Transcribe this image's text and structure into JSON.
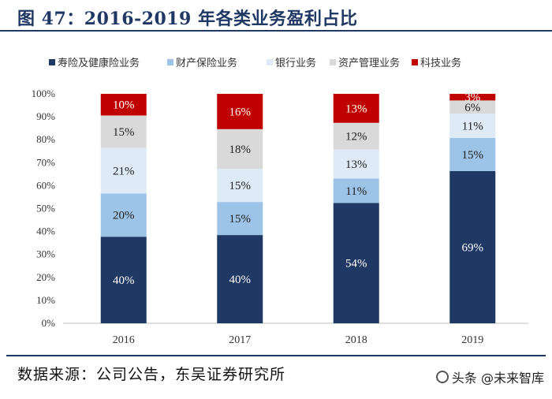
{
  "title": "图 47：2016-2019 年各类业务盈利占比",
  "source": "数据来源：公司公告，东吴证券研究所",
  "watermark": "头条 @未来智库",
  "chart_data": {
    "type": "bar",
    "stacked": true,
    "normalized": true,
    "categories": [
      "2016",
      "2017",
      "2018",
      "2019"
    ],
    "yticks": [
      "0%",
      "10%",
      "20%",
      "30%",
      "40%",
      "50%",
      "60%",
      "70%",
      "80%",
      "90%",
      "100%"
    ],
    "ylim": [
      0,
      100
    ],
    "legend_position": "top",
    "series": [
      {
        "name": "寿险及健康险业务",
        "color": "#203864",
        "label_color": "#ffffff",
        "values": [
          40,
          40,
          54,
          69
        ],
        "labels": [
          "40%",
          "40%",
          "54%",
          "69%"
        ]
      },
      {
        "name": "财产保险业务",
        "color": "#9dc3e6",
        "label_color": "#222222",
        "values": [
          20,
          15,
          11,
          15
        ],
        "labels": [
          "20%",
          "15%",
          "11%",
          "15%"
        ]
      },
      {
        "name": "银行业务",
        "color": "#deebf7",
        "label_color": "#222222",
        "values": [
          21,
          15,
          13,
          11
        ],
        "labels": [
          "21%",
          "15%",
          "13%",
          "11%"
        ]
      },
      {
        "name": "资产管理业务",
        "color": "#d9d9d9",
        "label_color": "#222222",
        "values": [
          15,
          18,
          12,
          6
        ],
        "labels": [
          "15%",
          "18%",
          "12%",
          "6%"
        ]
      },
      {
        "name": "科技业务",
        "color": "#c00000",
        "label_color": "#ffffff",
        "values": [
          10,
          16,
          13,
          3
        ],
        "labels": [
          "10%",
          "16%",
          "13%",
          "3%"
        ]
      }
    ]
  }
}
